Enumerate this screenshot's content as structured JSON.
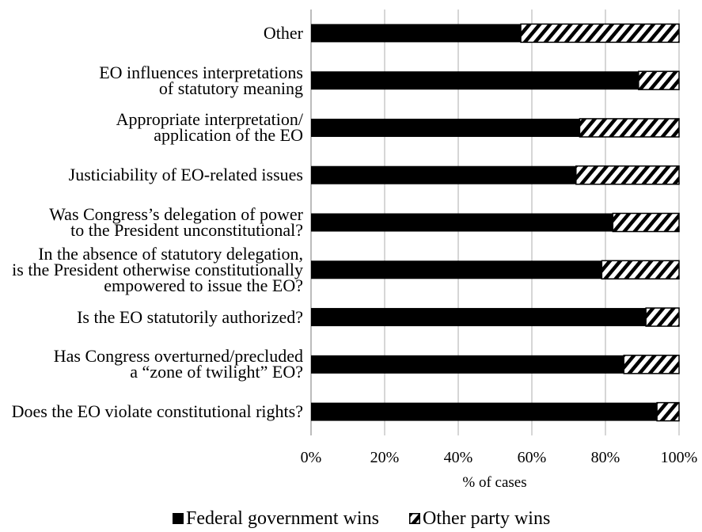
{
  "chart_data": {
    "type": "bar",
    "orientation": "horizontal",
    "stacked": true,
    "percent_stacked": true,
    "categories": [
      "Other",
      "EO influences interpretations\nof statutory meaning",
      "Appropriate interpretation/\napplication of the EO",
      "Justiciability of EO-related issues",
      "Was Congress’s delegation of power\nto the President unconstitutional?",
      "In the absence of statutory delegation,\nis the President otherwise constitutionally\nempowered to issue the EO?",
      "Is the EO statutorily authorized?",
      "Has Congress overturned/precluded\na “zone of twilight” EO?",
      "Does the EO violate constitutional rights?"
    ],
    "series": [
      {
        "name": "Federal government wins",
        "values": [
          57,
          89,
          73,
          72,
          82,
          79,
          91,
          85,
          94
        ],
        "color": "#000000",
        "fill": "solid"
      },
      {
        "name": "Other party wins",
        "values": [
          43,
          11,
          27,
          28,
          18,
          21,
          9,
          15,
          6
        ],
        "color": "#000000",
        "fill": "diagonal-hatch"
      }
    ],
    "xlabel": "% of cases",
    "xlim": [
      0,
      100
    ],
    "xticks": [
      0,
      20,
      40,
      60,
      80,
      100
    ],
    "xtick_labels": [
      "0%",
      "20%",
      "40%",
      "60%",
      "80%",
      "100%"
    ],
    "grid": "vertical",
    "legend": "bottom",
    "colors": {
      "grid": "#c8c8c8",
      "axis": "#a6a6a6",
      "background": "#ffffff"
    }
  }
}
